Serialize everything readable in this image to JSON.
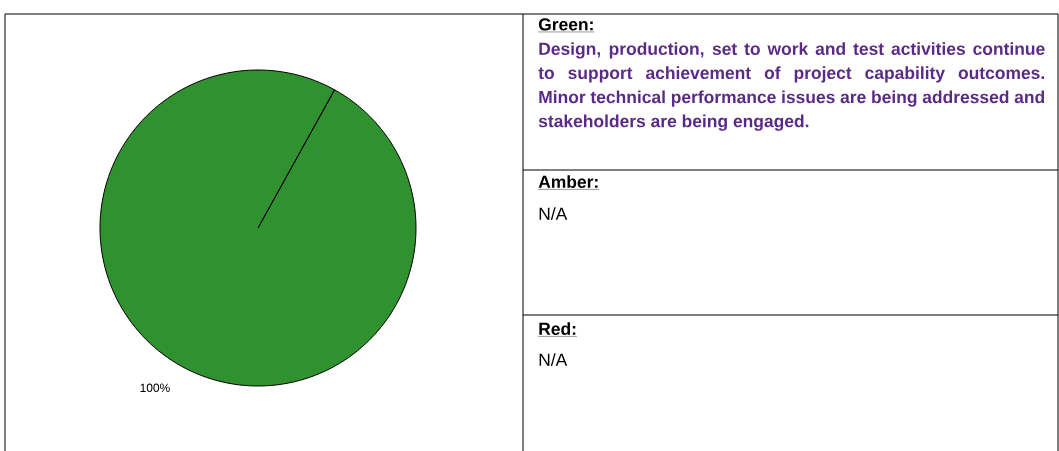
{
  "chart_data": [
    {
      "type": "pie",
      "categories": [
        null
      ],
      "values": [
        100
      ],
      "colors": [
        "#2f922f"
      ],
      "value_labels": [
        "100%"
      ]
    },
    {
      "type": "other",
      "annotations": [
        "Green:",
        "Design, production, set to work and test activities continue to support achievement of project capability outcomes. Minor technical performance issues are being addressed and stakeholders are being engaged.",
        "Amber:",
        "N/A",
        "Red:",
        "N/A"
      ]
    }
  ]
}
